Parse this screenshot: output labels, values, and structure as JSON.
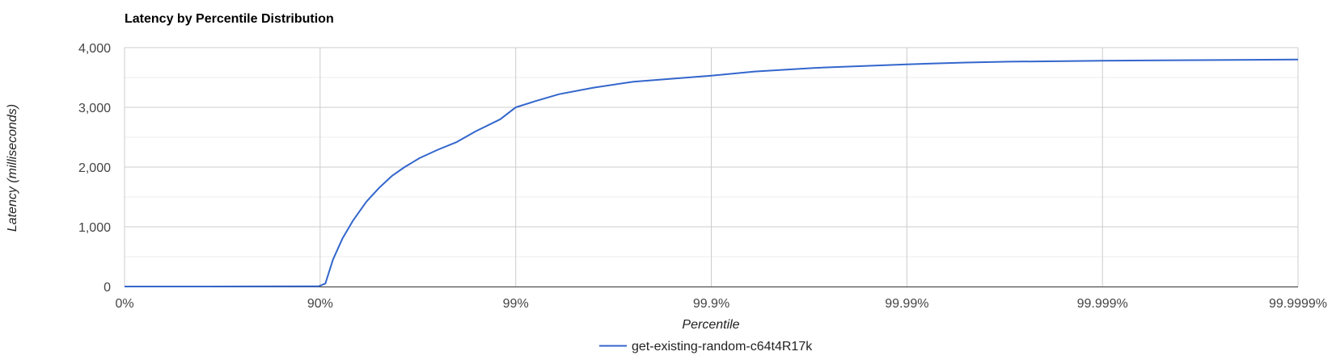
{
  "chart_data": {
    "type": "line",
    "title": "Latency by Percentile Distribution",
    "xlabel": "Percentile",
    "ylabel": "Latency (milliseconds)",
    "x_scale": "log-percentile",
    "x_ticks": [
      "0%",
      "90%",
      "99%",
      "99.9%",
      "99.99%",
      "99.999%",
      "99.9999%"
    ],
    "y_ticks": [
      "0",
      "1,000",
      "2,000",
      "3,000",
      "4,000"
    ],
    "ylim": [
      0,
      4000
    ],
    "grid": true,
    "legend_position": "bottom",
    "series": [
      {
        "name": "get-existing-random-c64t4R17k",
        "color": "#3366cc",
        "points": [
          {
            "x": 0,
            "y": 0
          },
          {
            "x": 50,
            "y": 0
          },
          {
            "x": 75,
            "y": 2
          },
          {
            "x": 87.5,
            "y": 3
          },
          {
            "x": 89.8,
            "y": 3
          },
          {
            "x": 90.6,
            "y": 50
          },
          {
            "x": 91.4,
            "y": 450
          },
          {
            "x": 92.3,
            "y": 800
          },
          {
            "x": 93.2,
            "y": 1100
          },
          {
            "x": 94.2,
            "y": 1420
          },
          {
            "x": 95.0,
            "y": 1650
          },
          {
            "x": 95.7,
            "y": 1850
          },
          {
            "x": 96.3,
            "y": 2000
          },
          {
            "x": 96.9,
            "y": 2150
          },
          {
            "x": 97.5,
            "y": 2290
          },
          {
            "x": 98.0,
            "y": 2420
          },
          {
            "x": 98.4,
            "y": 2600
          },
          {
            "x": 98.8,
            "y": 2800
          },
          {
            "x": 99.0,
            "y": 3000
          },
          {
            "x": 99.2,
            "y": 3100
          },
          {
            "x": 99.4,
            "y": 3220
          },
          {
            "x": 99.6,
            "y": 3330
          },
          {
            "x": 99.75,
            "y": 3430
          },
          {
            "x": 99.9,
            "y": 3530
          },
          {
            "x": 99.94,
            "y": 3600
          },
          {
            "x": 99.97,
            "y": 3660
          },
          {
            "x": 99.99,
            "y": 3720
          },
          {
            "x": 99.995,
            "y": 3750
          },
          {
            "x": 99.997,
            "y": 3765
          },
          {
            "x": 99.999,
            "y": 3780
          },
          {
            "x": 99.9995,
            "y": 3788
          },
          {
            "x": 99.9999,
            "y": 3800
          }
        ]
      }
    ]
  }
}
